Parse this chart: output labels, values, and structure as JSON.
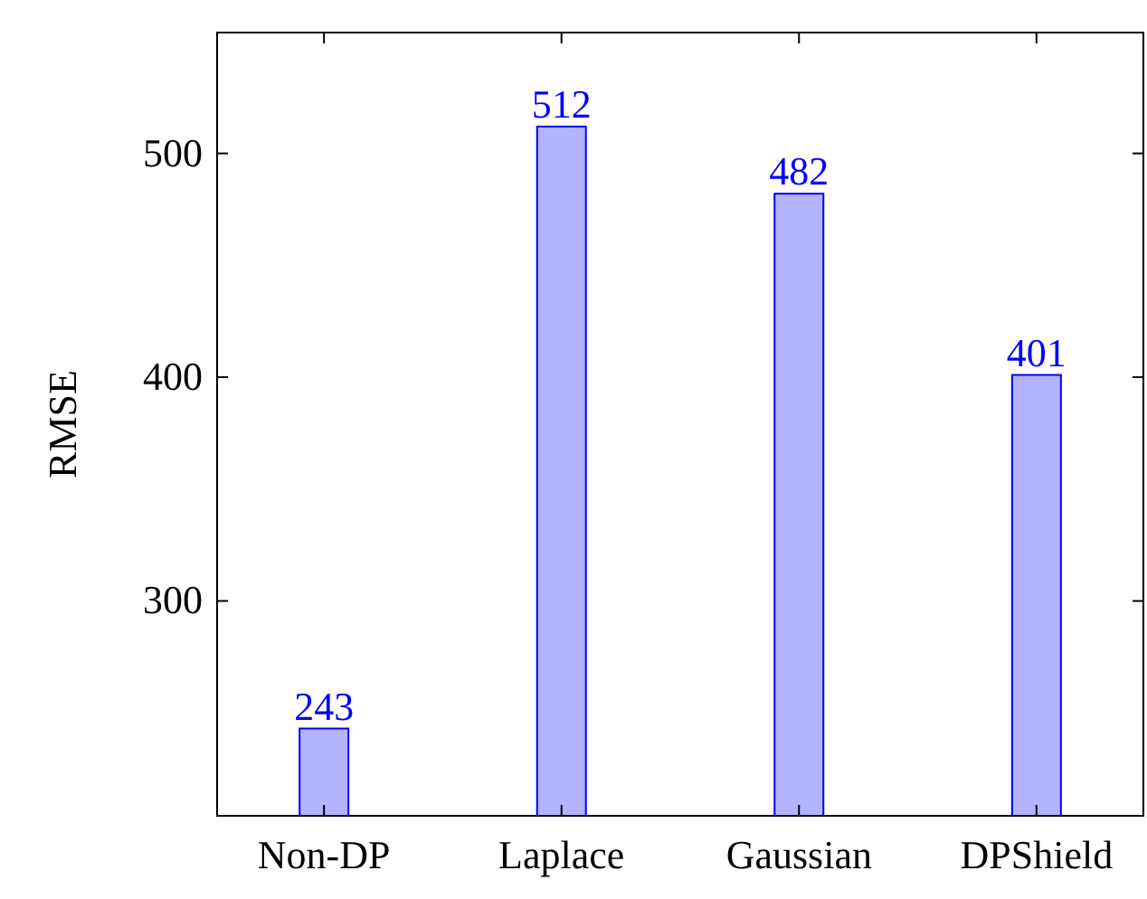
{
  "chart_data": {
    "type": "bar",
    "ylabel": "RMSE",
    "categories": [
      "Non-DP",
      "Laplace",
      "Gaussian",
      "DPShield"
    ],
    "values": [
      243,
      512,
      482,
      401
    ],
    "color": "#b3b3ff",
    "ylim": [
      204,
      554
    ],
    "yticks": [
      300,
      400,
      500
    ],
    "data_labels": true,
    "grid": false
  }
}
